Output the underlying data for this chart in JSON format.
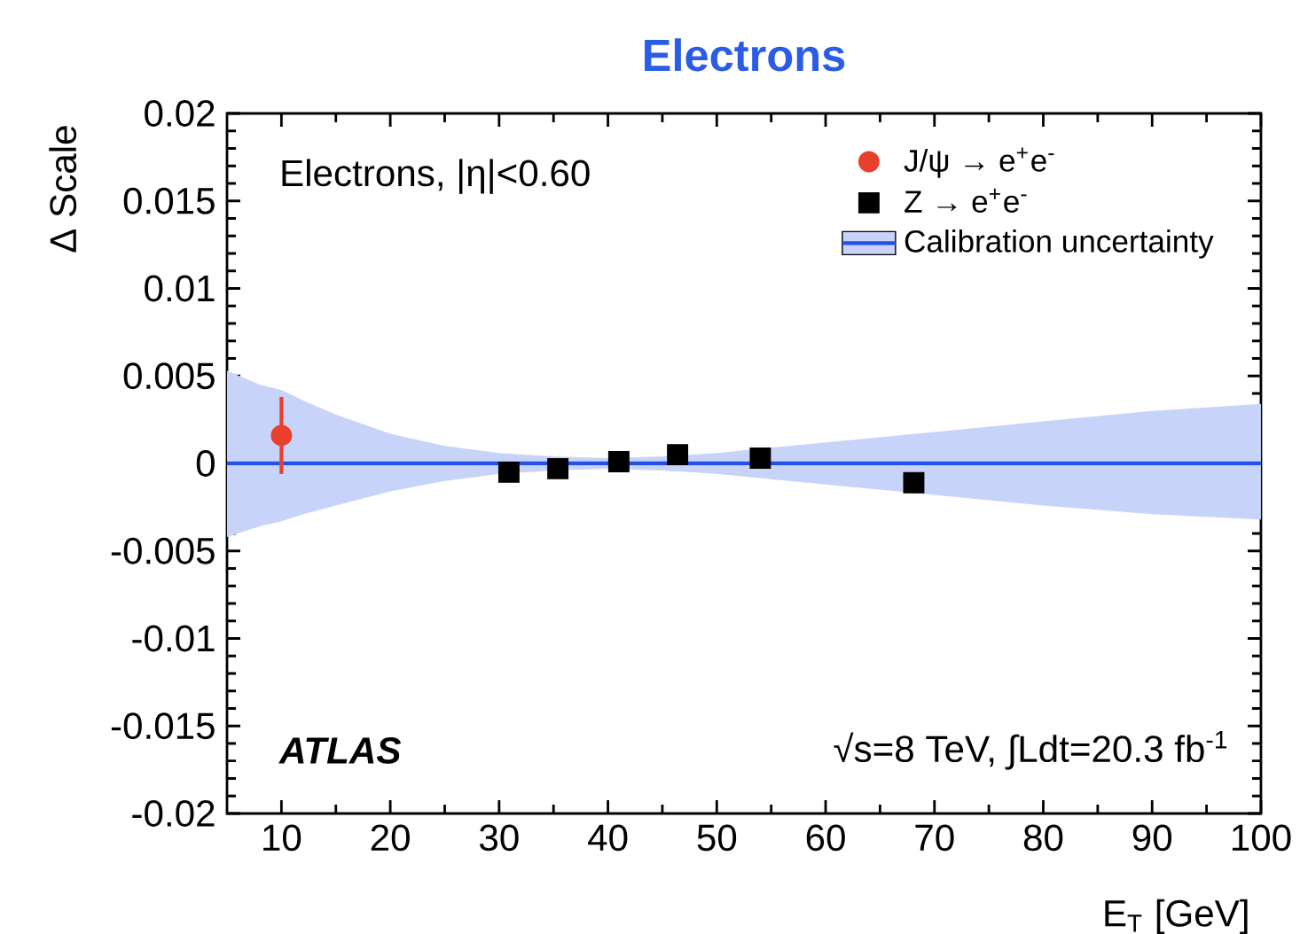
{
  "chart_data": {
    "type": "scatter",
    "title": "Electrons",
    "xlabel": "E$_{T}$ [GeV]",
    "ylabel": "Δ Scale",
    "annotations": [
      "Electrons, |η|<0.60",
      "ATLAS",
      "√s=8 TeV, ∫Ldt=20.3 fb$^{-1}$"
    ],
    "xlim": [
      5,
      100
    ],
    "ylim": [
      -0.02,
      0.02
    ],
    "xticks": [
      10,
      20,
      30,
      40,
      50,
      60,
      70,
      80,
      90,
      100
    ],
    "yticks": [
      -0.02,
      -0.015,
      -0.01,
      -0.005,
      0,
      0.005,
      0.01,
      0.015,
      0.02
    ],
    "legend": "top right",
    "series": [
      {
        "name": "Calibration uncertainty",
        "type": "line",
        "color": "#2250e8",
        "line_style": "solid",
        "marker": "none",
        "x": [
          5,
          8,
          10,
          12,
          15,
          20,
          25,
          30,
          35,
          40,
          45,
          50,
          55,
          60,
          70,
          80,
          90,
          100
        ],
        "values": [
          0,
          0,
          0,
          0,
          0,
          0,
          0,
          0,
          0,
          0,
          0,
          0,
          0,
          0,
          0,
          0,
          0,
          0
        ],
        "upper": [
          0.0053,
          0.0045,
          0.0042,
          0.0036,
          0.0028,
          0.0017,
          0.001,
          0.0006,
          0.0004,
          0.0003,
          0.0004,
          0.0006,
          0.0009,
          0.0012,
          0.0018,
          0.0024,
          0.003,
          0.0034
        ],
        "lower": [
          -0.0042,
          -0.0036,
          -0.0033,
          -0.0029,
          -0.0024,
          -0.0016,
          -0.001,
          -0.0006,
          -0.0004,
          -0.0003,
          -0.0004,
          -0.0006,
          -0.0009,
          -0.0012,
          -0.0018,
          -0.0024,
          -0.0029,
          -0.0032
        ]
      },
      {
        "name": "J/ψ → e$^{+}$e$^{-}$",
        "color": "#e8402c",
        "marker": "circle",
        "x": [
          10
        ],
        "values": [
          0.0016
        ],
        "errors": [
          0.0022
        ]
      },
      {
        "name": "Z → e$^{+}$e$^{-}$",
        "color": "#000000",
        "marker": "square",
        "x": [
          30.9,
          35.4,
          41.0,
          46.4,
          54.0,
          68.1
        ],
        "values": [
          -0.0005,
          -0.0003,
          0.0001,
          0.0005,
          0.0003,
          -0.0011
        ]
      }
    ]
  }
}
